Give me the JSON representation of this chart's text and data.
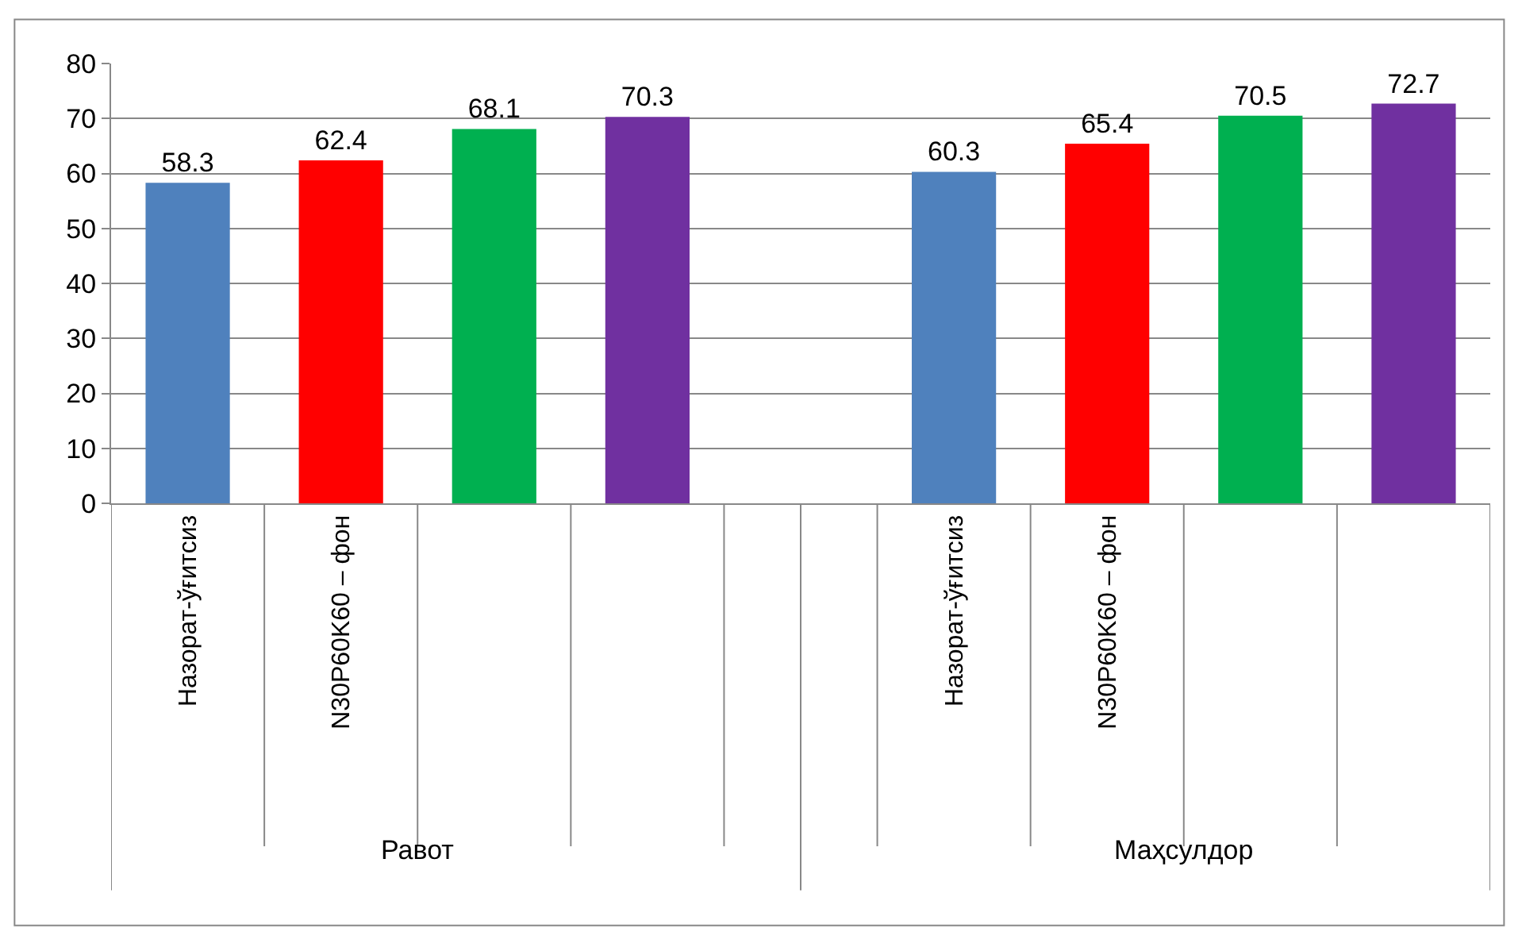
{
  "chart_data": {
    "type": "bar",
    "categories": [
      "Назорат-ўғитсиз",
      "N30P60K60 – фон",
      null,
      null,
      null,
      "Назорат-ўғитсиз",
      "N30P60K60 – фон",
      null,
      null
    ],
    "values": [
      58.3,
      62.4,
      68.1,
      70.3,
      null,
      60.3,
      65.4,
      70.5,
      72.7
    ],
    "colors": [
      "#4f81bd",
      "#ff0000",
      "#00b050",
      "#7030a0",
      "#4f81bd",
      "#4f81bd",
      "#ff0000",
      "#00b050",
      "#7030a0"
    ],
    "ylim": [
      0,
      80
    ],
    "yticks": [
      0,
      10,
      20,
      30,
      40,
      50,
      60,
      70,
      80
    ],
    "grid": "y",
    "data_labels": true,
    "legend": false,
    "annotations": [
      "Равот",
      "Маҳсулдор"
    ]
  }
}
